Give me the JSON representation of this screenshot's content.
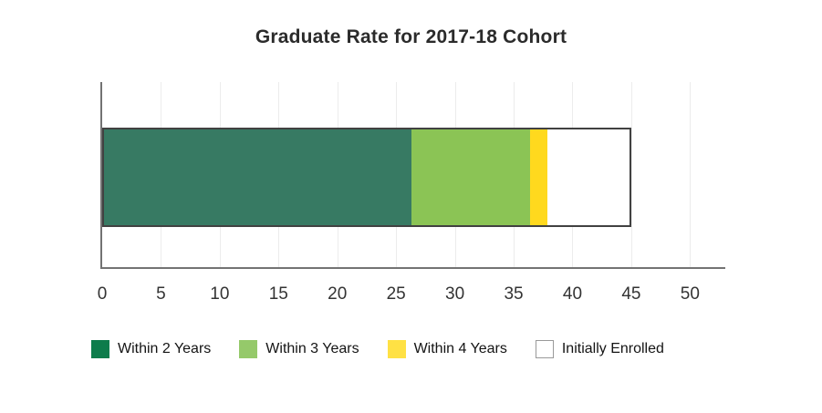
{
  "title": "Graduate Rate for 2017-18 Cohort",
  "chart_data": {
    "type": "bar",
    "orientation": "horizontal",
    "stacked": true,
    "title": "Graduate Rate for 2017-18 Cohort",
    "categories": [
      "2017-18 Cohort"
    ],
    "series": [
      {
        "name": "Within 2 Years",
        "value": 26.3,
        "cumulative": 26.3,
        "color": "#377A63"
      },
      {
        "name": "Within 3 Years",
        "value": 10.2,
        "cumulative": 36.5,
        "color": "#8BC455"
      },
      {
        "name": "Within 4 Years",
        "value": 1.5,
        "cumulative": 38.0,
        "color": "#FFD91E"
      },
      {
        "name": "Initially Enrolled",
        "value": 7.0,
        "cumulative": 45.0,
        "color": "#FFFFFF"
      }
    ],
    "xlabel": "",
    "ylabel": "",
    "x_axis": {
      "min": 0,
      "ticks": [
        0,
        5,
        10,
        15,
        20,
        25,
        30,
        35,
        40,
        45,
        50
      ],
      "axis_extent": 53,
      "gridlines": true
    },
    "grid": true,
    "legend_position": "bottom"
  },
  "legend": {
    "entries": [
      {
        "label": "Within 2 Years",
        "swatch_color": "#0D7C4B",
        "swatch_border": ""
      },
      {
        "label": "Within 3 Years",
        "swatch_color": "#95C96A",
        "swatch_border": ""
      },
      {
        "label": "Within 4 Years",
        "swatch_color": "#FFE144",
        "swatch_border": ""
      },
      {
        "label": "Initially Enrolled",
        "swatch_color": "#FFFFFF",
        "swatch_border": "#999999"
      }
    ]
  },
  "colors": {
    "axis_line": "#737373",
    "gridline": "#ececec",
    "bar_border": "#414141",
    "title_text": "#2b2b2b",
    "tick_text": "#333333",
    "legend_text": "#141414",
    "background": "#ffffff"
  }
}
